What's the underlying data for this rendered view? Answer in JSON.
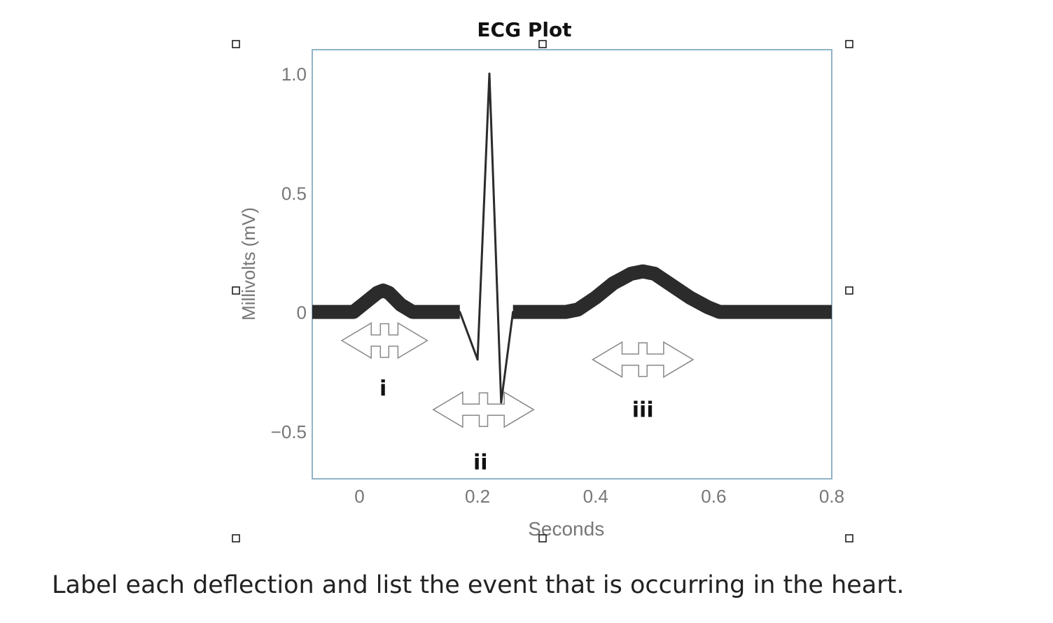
{
  "question_text": "Label each deflection and list the event that is occurring in the heart.",
  "chart_data": {
    "type": "line",
    "title": "ECG Plot",
    "xlabel": "Seconds",
    "ylabel": "Millivolts (mV)",
    "xlim": [
      -0.08,
      0.8
    ],
    "ylim": [
      -0.7,
      1.1
    ],
    "x_ticks": [
      0,
      0.2,
      0.4,
      0.6,
      0.8
    ],
    "x_tick_labels": [
      "0",
      "0.2",
      "0.4",
      "0.6",
      "0.8"
    ],
    "y_ticks": [
      1.0,
      0.5,
      0,
      -0.5
    ],
    "y_tick_labels": [
      "1.0",
      "0.5",
      "0",
      "−0.5"
    ],
    "grid": false,
    "series": [
      {
        "x": [
          -0.08,
          -0.04,
          -0.01,
          0.01,
          0.03,
          0.04,
          0.05,
          0.07,
          0.09,
          0.17,
          0.2,
          0.22,
          0.24,
          0.26,
          0.35,
          0.37,
          0.4,
          0.43,
          0.46,
          0.48,
          0.5,
          0.53,
          0.56,
          0.59,
          0.61,
          0.8
        ],
        "y": [
          0,
          0,
          0,
          0.04,
          0.08,
          0.09,
          0.08,
          0.03,
          0,
          0,
          -0.2,
          1.0,
          -0.38,
          0,
          0,
          0.01,
          0.06,
          0.12,
          0.16,
          0.17,
          0.16,
          0.11,
          0.06,
          0.02,
          0,
          0
        ]
      }
    ],
    "annotations": [
      {
        "label": "i",
        "x": 0.04,
        "y": -0.35
      },
      {
        "label": "ii",
        "x": 0.205,
        "y": -0.66
      },
      {
        "label": "iii",
        "x": 0.48,
        "y": -0.44
      }
    ],
    "interval_arrows": [
      {
        "x_from": -0.03,
        "x_to": 0.115,
        "y": -0.12
      },
      {
        "x_from": 0.125,
        "x_to": 0.295,
        "y": -0.41
      },
      {
        "x_from": 0.395,
        "x_to": 0.565,
        "y": -0.2
      }
    ]
  }
}
